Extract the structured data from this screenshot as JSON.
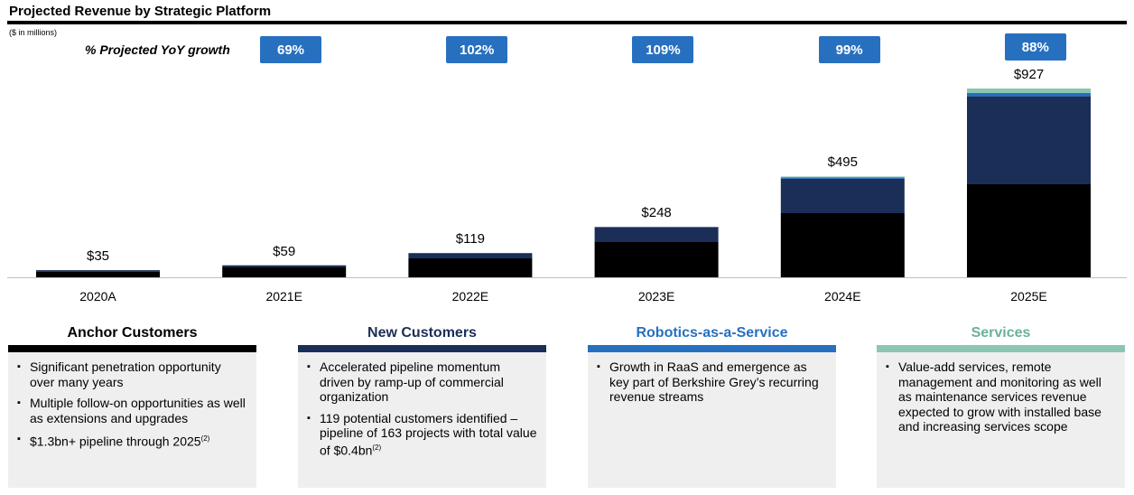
{
  "title": "Projected Revenue by Strategic Platform",
  "units_note": "($ in millions)",
  "yoy_label": "% Projected YoY growth",
  "colors": {
    "anchor": "#000000",
    "new_customers": "#1b2e58",
    "raas": "#2770c0",
    "services": "#8cc5b3",
    "badge": "#2770c0",
    "panel_bg": "#efefef"
  },
  "chart_data": {
    "type": "bar",
    "stacked": true,
    "categories": [
      "2020A",
      "2021E",
      "2022E",
      "2023E",
      "2024E",
      "2025E"
    ],
    "series": [
      {
        "name": "Anchor Customers",
        "values": [
          27,
          52,
          93,
          176,
          315,
          457
        ]
      },
      {
        "name": "New Customers",
        "values": [
          8,
          7,
          26,
          70,
          169,
          432
        ]
      },
      {
        "name": "Robotics-as-a-Service",
        "values": [
          0,
          0,
          0,
          1,
          6,
          16
        ]
      },
      {
        "name": "Services",
        "values": [
          0,
          0,
          0,
          1,
          5,
          22
        ]
      }
    ],
    "totals": [
      "$35",
      "$59",
      "$119",
      "$248",
      "$495",
      "$927"
    ],
    "yoy_growth": [
      "69%",
      "102%",
      "109%",
      "99%",
      "88%"
    ],
    "ylim": [
      0,
      927
    ],
    "grid": false
  },
  "panels": [
    {
      "title": "Anchor Customers",
      "bullets": [
        {
          "text": "Significant penetration opportunity over many years",
          "sup": ""
        },
        {
          "text": "Multiple follow-on opportunities as well as extensions and upgrades",
          "sup": ""
        },
        {
          "text": "$1.3bn+ pipeline through 2025",
          "sup": "(2)"
        }
      ]
    },
    {
      "title": "New Customers",
      "bullets": [
        {
          "text": "Accelerated pipeline momentum driven by ramp-up of commercial organization",
          "sup": ""
        },
        {
          "text": "119 potential customers identified – pipeline of 163 projects with total value of $0.4bn",
          "sup": "(2)"
        }
      ]
    },
    {
      "title": "Robotics-as-a-Service",
      "bullets": [
        {
          "text": "Growth in RaaS and emergence as key part of Berkshire Grey’s recurring revenue streams",
          "sup": ""
        }
      ]
    },
    {
      "title": "Services",
      "bullets": [
        {
          "text": "Value-add services, remote management and monitoring as well as maintenance services revenue expected to grow with installed base and increasing services scope",
          "sup": ""
        }
      ]
    }
  ]
}
